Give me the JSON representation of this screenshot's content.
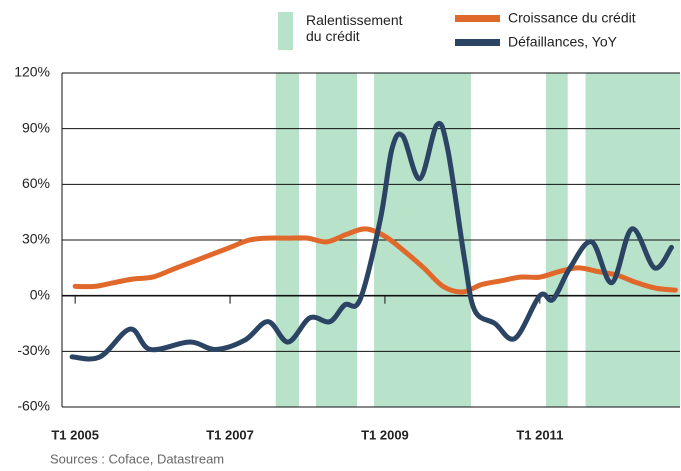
{
  "chart_data": {
    "type": "line",
    "shaded_name": "Ralentissement du crédit",
    "shaded_color": "#b8e2ca",
    "shaded_periods": [
      [
        2007.59,
        2007.89
      ],
      [
        2008.11,
        2008.64
      ],
      [
        2008.86,
        2010.11
      ],
      [
        2011.08,
        2011.36
      ],
      [
        2011.59,
        2012.81
      ]
    ],
    "series": [
      {
        "name": "Croissance du crédit",
        "color": "#e0682b",
        "x": [
          2005,
          2005.25,
          2005.5,
          2005.75,
          2006,
          2006.25,
          2006.5,
          2006.75,
          2007,
          2007.25,
          2007.5,
          2007.75,
          2008,
          2008.25,
          2008.5,
          2008.75,
          2009,
          2009.25,
          2009.5,
          2009.75,
          2010,
          2010.25,
          2010.5,
          2010.75,
          2011,
          2011.25,
          2011.5,
          2011.75,
          2012,
          2012.25,
          2012.5,
          2012.75
        ],
        "values": [
          5,
          5,
          7,
          9,
          10,
          14,
          18,
          22,
          26,
          30,
          31,
          31,
          31,
          29,
          33,
          36,
          32,
          24,
          15,
          5,
          2,
          6,
          8,
          10,
          10,
          13,
          15,
          13,
          11,
          7,
          4,
          3
        ]
      },
      {
        "name": "Défaillances, YoY",
        "color": "#2c4464",
        "x": [
          2004.96,
          2005.32,
          2005.71,
          2005.97,
          2006.48,
          2006.81,
          2007.19,
          2007.49,
          2007.75,
          2008.03,
          2008.29,
          2008.48,
          2008.68,
          2008.94,
          2009.09,
          2009.23,
          2009.45,
          2009.67,
          2009.81,
          2010.03,
          2010.16,
          2010.42,
          2010.68,
          2011.0,
          2011.17,
          2011.39,
          2011.67,
          2011.93,
          2012.19,
          2012.48,
          2012.7
        ],
        "values": [
          -33,
          -33,
          -18,
          -29,
          -25,
          -29,
          -24,
          -14,
          -25,
          -12,
          -14,
          -5,
          -2,
          41,
          79,
          86,
          63,
          92,
          79,
          19,
          -8,
          -15,
          -23,
          0,
          -2,
          15,
          29,
          7,
          36,
          15,
          26
        ]
      }
    ],
    "xlim": [
      2004.83,
      2012.81
    ],
    "xticks": [
      {
        "value": 2005,
        "label": "T1 2005"
      },
      {
        "value": 2007,
        "label": "T1 2007"
      },
      {
        "value": 2009,
        "label": "T1 2009"
      },
      {
        "value": 2011,
        "label": "T1 2011"
      }
    ],
    "ylim": [
      -60,
      120
    ],
    "yticks": [
      {
        "value": -60,
        "label": "-60%"
      },
      {
        "value": -30,
        "label": "-30%"
      },
      {
        "value": 0,
        "label": "0%"
      },
      {
        "value": 30,
        "label": "30%"
      },
      {
        "value": 60,
        "label": "60%"
      },
      {
        "value": 90,
        "label": "90%"
      },
      {
        "value": 120,
        "label": "120%"
      }
    ],
    "grid": true,
    "source": "Sources : Coface, Datastream"
  }
}
